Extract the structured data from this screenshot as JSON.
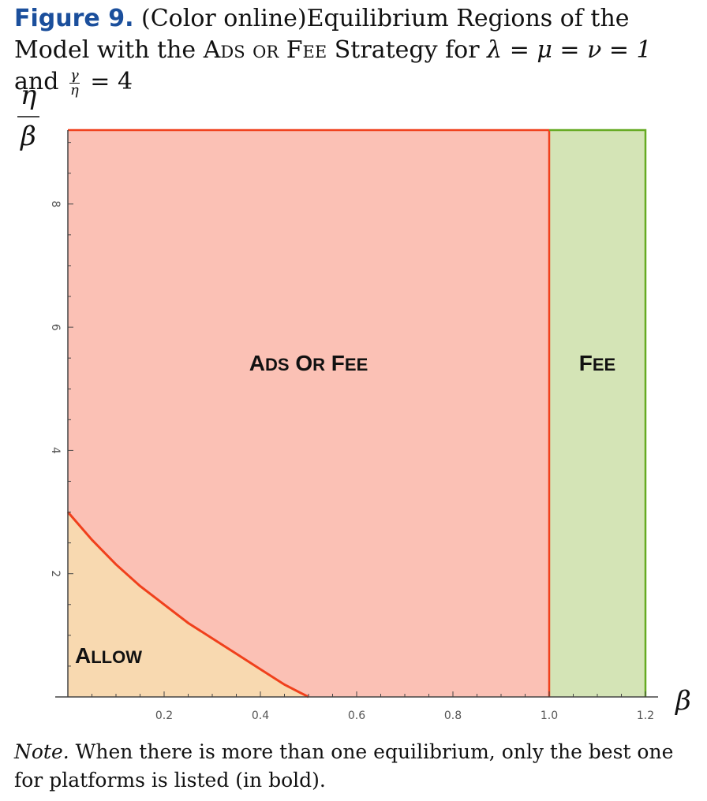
{
  "caption": {
    "figure_label": "Figure 9.",
    "text_before": "(Color online)Equilibrium Regions of the Model with the",
    "strategy_1": "Ads or Fee",
    "text_middle": "Strategy for",
    "params": "λ = μ = ν = 1",
    "and": "and",
    "ratio_num": "γ",
    "ratio_den": "η",
    "ratio_value": "= 4"
  },
  "note": {
    "label": "Note.",
    "text": "When there is more than one equilibrium, only the best one for platforms is listed (in bold)."
  },
  "chart_data": {
    "type": "area",
    "title": "",
    "xlabel": "β",
    "ylabel_num": "η",
    "ylabel_den": "β",
    "xlim": [
      0,
      1.2
    ],
    "ylim": [
      0,
      9.2
    ],
    "x_ticks": [
      0.2,
      0.4,
      0.6,
      0.8,
      1.0,
      1.2
    ],
    "x_tick_labels": [
      "0.2",
      "0.4",
      "0.6",
      "0.8",
      "1.0",
      "1.2"
    ],
    "y_ticks": [
      2,
      4,
      6,
      8
    ],
    "y_tick_labels": [
      "2",
      "4",
      "6",
      "8"
    ],
    "boundary_curve": {
      "x": [
        0.0,
        0.05,
        0.1,
        0.15,
        0.2,
        0.25,
        0.3,
        0.35,
        0.4,
        0.45,
        0.5
      ],
      "y": [
        3.0,
        2.55,
        2.15,
        1.8,
        1.5,
        1.2,
        0.95,
        0.7,
        0.45,
        0.2,
        0.0
      ]
    },
    "regions": [
      {
        "name": "Allow",
        "label": "Allow",
        "color": "#f8d9b0",
        "x_range": [
          0,
          0.5
        ],
        "label_pos": [
          0.1,
          0.55
        ]
      },
      {
        "name": "Ads or Fee",
        "label": "Ads or Fee",
        "color": "#fbc1b5",
        "x_range": [
          0,
          1.0
        ],
        "label_pos": [
          0.5,
          5.3
        ]
      },
      {
        "name": "Fee",
        "label": "Fee",
        "color": "#d4e4b6",
        "x_range": [
          1.0,
          1.2
        ],
        "label_pos": [
          1.1,
          5.3
        ]
      }
    ],
    "boundary_color": "#f0401c",
    "fee_border_color": "#66aa22",
    "grid": false,
    "legend": "none"
  }
}
